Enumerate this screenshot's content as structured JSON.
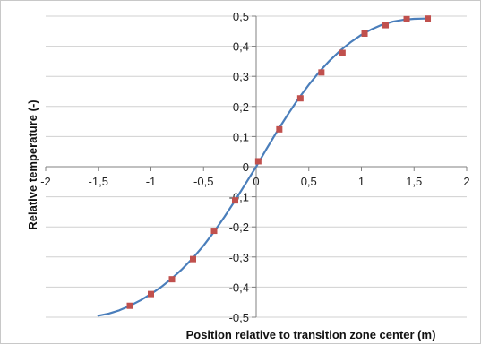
{
  "chart_data": {
    "type": "scatter",
    "xlabel": "Position relative to transition zone center (m)",
    "ylabel": "Relative temperature (-)",
    "xlim": [
      -2,
      2
    ],
    "ylim": [
      -0.5,
      0.5
    ],
    "x_ticks": [
      -2,
      -1.5,
      -1,
      -0.5,
      0,
      0.5,
      1,
      1.5,
      2
    ],
    "y_ticks": [
      -0.5,
      -0.4,
      -0.3,
      -0.2,
      -0.1,
      0,
      0.1,
      0.2,
      0.3,
      0.4,
      0.5
    ],
    "x_tick_labels": [
      "-2",
      "-1,5",
      "-1",
      "-0,5",
      "0",
      "0,5",
      "1",
      "1,5",
      "2"
    ],
    "y_tick_labels": [
      "-0,5",
      "-0,4",
      "-0,3",
      "-0,2",
      "-0,1",
      "0",
      "0,1",
      "0,2",
      "0,3",
      "0,4",
      "0,5"
    ],
    "grid": "horizontal",
    "legend": "none",
    "series": [
      {
        "kind": "line",
        "color": "#4a7ebb",
        "x": [
          -1.5,
          -1.4,
          -1.3,
          -1.2,
          -1.1,
          -1.0,
          -0.9,
          -0.8,
          -0.7,
          -0.6,
          -0.5,
          -0.4,
          -0.3,
          -0.2,
          -0.1,
          0.0,
          0.1,
          0.2,
          0.3,
          0.4,
          0.5,
          0.6,
          0.7,
          0.8,
          0.9,
          1.0,
          1.1,
          1.2,
          1.3,
          1.4,
          1.5,
          1.6,
          1.65
        ],
        "y": [
          -0.495,
          -0.488,
          -0.477,
          -0.462,
          -0.444,
          -0.423,
          -0.399,
          -0.371,
          -0.339,
          -0.303,
          -0.262,
          -0.216,
          -0.166,
          -0.112,
          -0.056,
          0.0,
          0.06,
          0.118,
          0.173,
          0.225,
          0.272,
          0.315,
          0.353,
          0.386,
          0.414,
          0.438,
          0.457,
          0.472,
          0.482,
          0.488,
          0.491,
          0.492,
          0.492
        ]
      },
      {
        "kind": "markers",
        "color": "#c0504d",
        "x": [
          -1.2,
          -1.0,
          -0.8,
          -0.6,
          -0.4,
          -0.2,
          0.02,
          0.22,
          0.42,
          0.62,
          0.82,
          1.03,
          1.23,
          1.43,
          1.63
        ],
        "y": [
          -0.462,
          -0.423,
          -0.374,
          -0.307,
          -0.213,
          -0.112,
          0.018,
          0.124,
          0.227,
          0.313,
          0.378,
          0.442,
          0.47,
          0.49,
          0.492
        ]
      }
    ]
  }
}
